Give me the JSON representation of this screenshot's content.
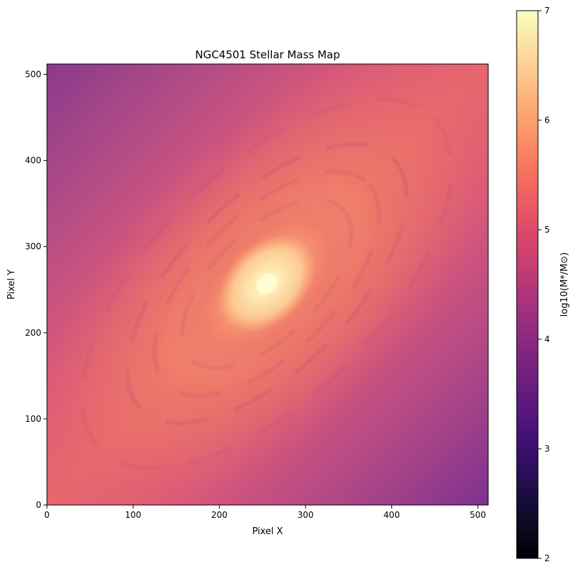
{
  "chart_data": {
    "type": "heatmap",
    "title": "NGC4501 Stellar Mass Map",
    "xlabel": "Pixel X",
    "ylabel": "Pixel Y",
    "xlim": [
      0,
      512
    ],
    "ylim": [
      0,
      512
    ],
    "xticks": [
      0,
      100,
      200,
      300,
      400,
      500
    ],
    "yticks": [
      0,
      100,
      200,
      300,
      400,
      500
    ],
    "colormap": "magma",
    "colorbar": {
      "label": "log10(M*/M⊙)",
      "range": [
        2,
        7
      ],
      "ticks": [
        2,
        3,
        4,
        5,
        6,
        7
      ]
    },
    "galaxy": {
      "center": [
        255,
        257
      ],
      "position_angle_deg": 45,
      "peak_value": 7.0,
      "edge_value_low": 3.9
    }
  }
}
